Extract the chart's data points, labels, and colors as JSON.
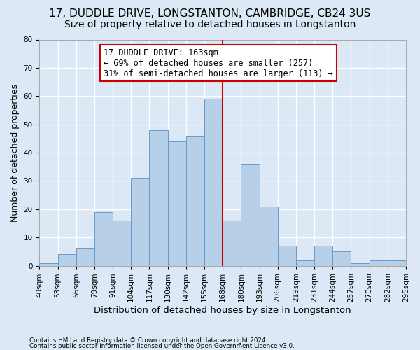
{
  "title": "17, DUDDLE DRIVE, LONGSTANTON, CAMBRIDGE, CB24 3US",
  "subtitle": "Size of property relative to detached houses in Longstanton",
  "xlabel": "Distribution of detached houses by size in Longstanton",
  "ylabel": "Number of detached properties",
  "footer_line1": "Contains HM Land Registry data © Crown copyright and database right 2024.",
  "footer_line2": "Contains public sector information licensed under the Open Government Licence v3.0.",
  "bar_labels": [
    "40sqm",
    "53sqm",
    "66sqm",
    "79sqm",
    "91sqm",
    "104sqm",
    "117sqm",
    "130sqm",
    "142sqm",
    "155sqm",
    "168sqm",
    "180sqm",
    "193sqm",
    "206sqm",
    "219sqm",
    "231sqm",
    "244sqm",
    "257sqm",
    "270sqm",
    "282sqm",
    "295sqm"
  ],
  "bar_heights": [
    1,
    4,
    6,
    19,
    16,
    31,
    48,
    44,
    46,
    59,
    16,
    36,
    21,
    7,
    2,
    7,
    5,
    1,
    2,
    2
  ],
  "bar_color": "#b8cfe8",
  "bar_edge_color": "#6699cc",
  "property_label": "17 DUDDLE DRIVE: 163sqm",
  "annotation_line1": "← 69% of detached houses are smaller (257)",
  "annotation_line2": "31% of semi-detached houses are larger (113) →",
  "vline_color": "#cc0000",
  "vline_x_bin": 10.0,
  "annotation_box_color": "#cc0000",
  "ylim": [
    0,
    80
  ],
  "yticks": [
    0,
    10,
    20,
    30,
    40,
    50,
    60,
    70,
    80
  ],
  "background_color": "#dce8f5",
  "grid_color": "#ffffff",
  "title_fontsize": 11,
  "subtitle_fontsize": 10,
  "axis_label_fontsize": 9,
  "tick_fontsize": 7.5,
  "annotation_fontsize": 8.5
}
